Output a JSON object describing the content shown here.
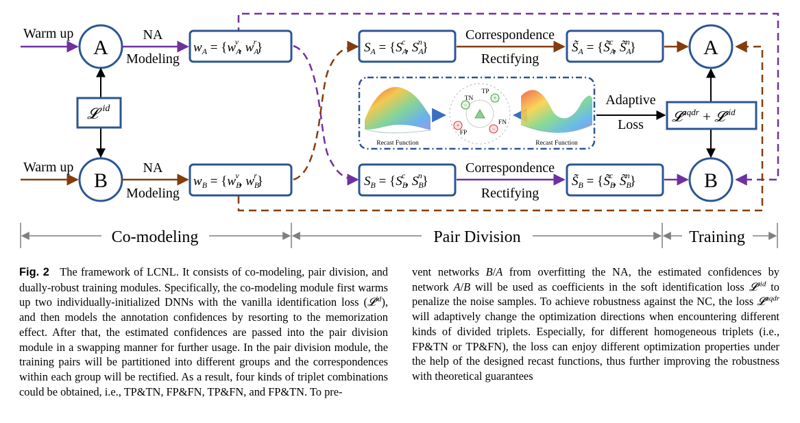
{
  "diagram": {
    "warmup_a": "Warm up",
    "warmup_b": "Warm up",
    "na_a": "NA",
    "modeling_a": "Modeling",
    "na_b": "NA",
    "modeling_b": "Modeling",
    "node_a_left": "A",
    "node_b_left": "B",
    "node_a_right": "A",
    "node_b_right": "B",
    "loss_id": "𝓛",
    "loss_id_sup": "id",
    "w_a_box": "w_A = {w_A^v, w_A^r}",
    "w_b_box": "w_B = {w_B^v, w_B^r}",
    "s_a_box": "S_A = {S_A^c, S_A^n}",
    "s_b_box": "S_B = {S_B^c, S_B^n}",
    "s_a_tilde_box": "S̃_A = {S̃_A^c, S̃_A^n}",
    "s_b_tilde_box": "S̃_B = {S̃_B^c, S̃_B^n}",
    "correspondence_a": "Correspondence",
    "rectifying_a": "Rectifying",
    "correspondence_b": "Correspondence",
    "rectifying_b": "Rectifying",
    "adaptive": "Adaptive",
    "loss_word": "Loss",
    "loss_combined": "𝓛^aqdr + 𝓛^sid",
    "recast_left": "Recast Function",
    "recast_right": "Recast Function",
    "tn": "TN",
    "tp": "TP",
    "fp": "FP",
    "fn": "FN",
    "stage_comodeling": "Co-modeling",
    "stage_pair_division": "Pair Division",
    "stage_training": "Training",
    "colors": {
      "blue": "#2b5594",
      "purple": "#7030a0",
      "brown": "#843c0c",
      "gray": "#7f7f7f"
    }
  },
  "caption": {
    "label": "Fig. 2",
    "left_text": "The framework of LCNL. It consists of co-modeling, pair division, and dually-robust training modules. Specifically, the co-modeling module first warms up two individually-initialized DNNs with the vanilla identification loss (𝓛^id), and then models the annotation confidences by resorting to the memorization effect. After that, the estimated confidences are passed into the pair division module in a swapping manner for further usage. In the pair division module, the training pairs will be partitioned into different groups and the correspondences within each group will be rectified. As a result, four kinds of triplet combinations could be obtained, i.e., TP&TN, FP&FN, TP&FN, and FP&TN. To prevent networks B/A from overfitting the NA, the estimated confidences by network A/B will be used as coefficients in the soft identification loss 𝓛^sid to penalize the noise samples. To achieve robustness against the NC, the loss 𝓛^aqdr will adaptively change the optimization directions when encountering different kinds of divided triplets. Especially, for different homogeneous triplets (i.e., FP&TN or TP&FN), the loss can enjoy different optimization properties under the help of the designed recast functions, thus further improving the robustness with theoretical guarantees"
  }
}
